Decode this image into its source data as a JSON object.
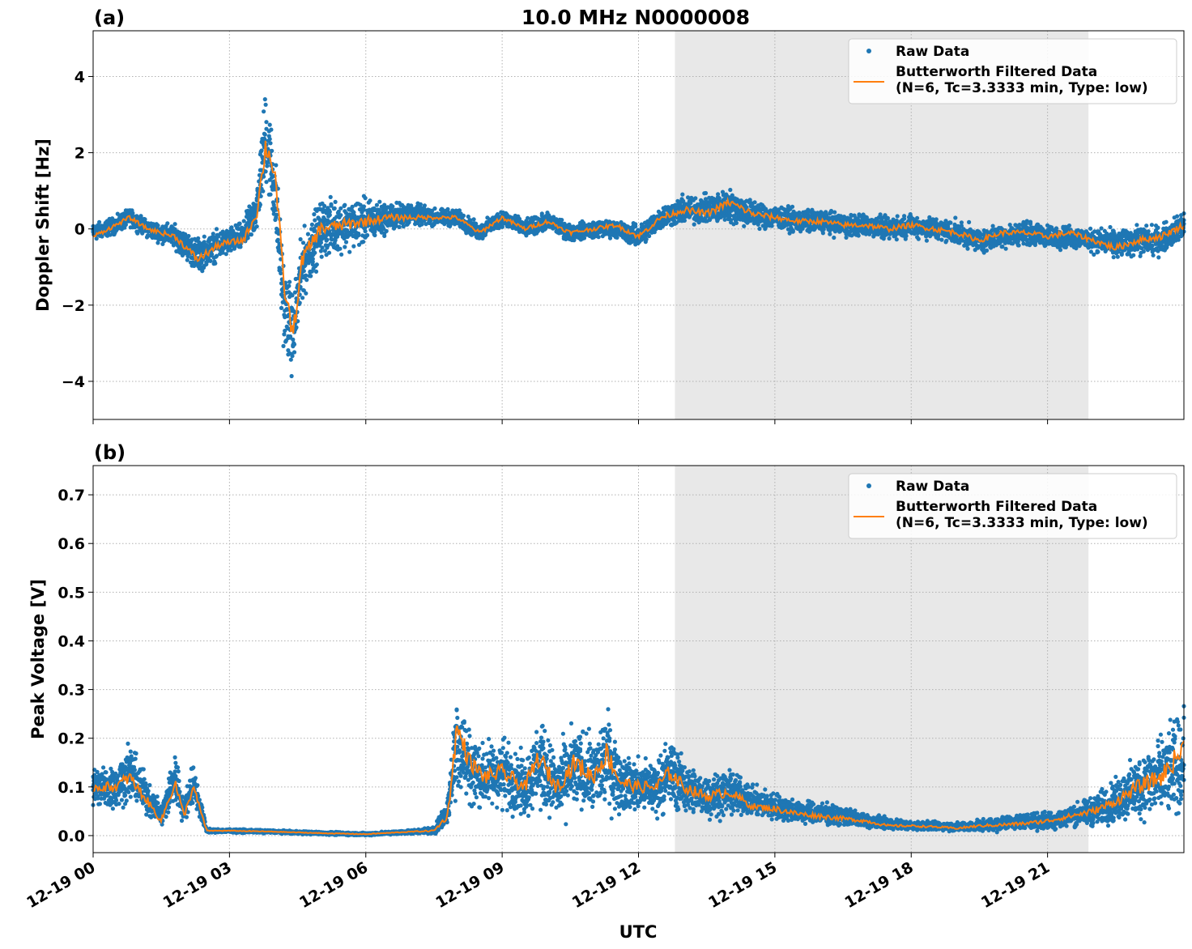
{
  "figure": {
    "title": "10.0 MHz N0000008",
    "xlabel": "UTC",
    "x_tick_labels": [
      "12-19 00",
      "12-19 03",
      "12-19 06",
      "12-19 09",
      "12-19 12",
      "12-19 15",
      "12-19 18",
      "12-19 21"
    ]
  },
  "chart_data": [
    {
      "type": "scatter",
      "panel_label": "(a)",
      "ylabel": "Doppler Shift [Hz]",
      "xlim_hours": [
        0,
        24
      ],
      "ylim": [
        -5,
        5.2
      ],
      "y_ticks": [
        -4,
        -2,
        0,
        2,
        4
      ],
      "y_tick_labels": [
        "−4",
        "−2",
        "0",
        "2",
        "4"
      ],
      "grid": true,
      "legend_position": "top-right",
      "shaded_region_hours": [
        12.8,
        21.9
      ],
      "series": [
        {
          "name": "Raw Data",
          "kind": "scatter",
          "x_hours": [
            0,
            0.5,
            0.8,
            1.2,
            1.8,
            2.3,
            2.8,
            3.3,
            3.6,
            3.8,
            4.0,
            4.2,
            4.4,
            4.6,
            5.0,
            5.5,
            6.0,
            6.5,
            7.0,
            7.5,
            8.0,
            8.5,
            9.0,
            9.5,
            10.0,
            10.5,
            11.0,
            11.5,
            12.0,
            12.5,
            13.0,
            13.5,
            14.0,
            14.5,
            15.0,
            15.5,
            16.0,
            16.5,
            17.0,
            17.5,
            18.0,
            18.5,
            19.0,
            19.5,
            20.0,
            20.5,
            21.0,
            21.5,
            22.0,
            22.5,
            23.0,
            23.5,
            24.0
          ],
          "y_center": [
            -0.1,
            0.1,
            0.3,
            0.0,
            -0.2,
            -0.7,
            -0.4,
            -0.2,
            0.5,
            2.5,
            1.0,
            -2.0,
            -2.8,
            -1.0,
            0.0,
            0.1,
            0.2,
            0.3,
            0.4,
            0.3,
            0.3,
            -0.1,
            0.3,
            0.0,
            0.2,
            -0.1,
            0.0,
            0.0,
            -0.2,
            0.3,
            0.5,
            0.5,
            0.6,
            0.4,
            0.3,
            0.2,
            0.2,
            0.1,
            0.1,
            0.0,
            0.1,
            0.0,
            -0.1,
            -0.3,
            -0.2,
            -0.1,
            -0.2,
            -0.2,
            -0.3,
            -0.4,
            -0.3,
            -0.3,
            0.1
          ],
          "y_spread": [
            0.3,
            0.3,
            0.3,
            0.3,
            0.4,
            0.6,
            0.5,
            0.5,
            0.8,
            1.8,
            1.5,
            1.5,
            1.5,
            1.2,
            1.0,
            0.9,
            0.8,
            0.5,
            0.4,
            0.3,
            0.3,
            0.3,
            0.3,
            0.3,
            0.3,
            0.3,
            0.3,
            0.3,
            0.4,
            0.4,
            0.5,
            0.5,
            0.6,
            0.5,
            0.4,
            0.4,
            0.4,
            0.4,
            0.4,
            0.4,
            0.4,
            0.4,
            0.4,
            0.4,
            0.4,
            0.4,
            0.4,
            0.4,
            0.4,
            0.5,
            0.5,
            0.5,
            0.5
          ]
        },
        {
          "name": "Butterworth Filtered Data\n(N=6, Tc=3.3333 min, Type: low)",
          "kind": "line",
          "x_hours": [
            0,
            0.5,
            0.8,
            1.2,
            1.8,
            2.3,
            2.8,
            3.3,
            3.6,
            3.8,
            4.0,
            4.2,
            4.4,
            4.6,
            5.0,
            5.5,
            6.0,
            6.5,
            7.0,
            7.5,
            8.0,
            8.5,
            9.0,
            9.5,
            10.0,
            10.5,
            11.0,
            11.5,
            12.0,
            12.5,
            13.0,
            13.5,
            14.0,
            14.5,
            15.0,
            15.5,
            16.0,
            16.5,
            17.0,
            17.5,
            18.0,
            18.5,
            19.0,
            19.5,
            20.0,
            20.5,
            21.0,
            21.5,
            22.0,
            22.5,
            23.0,
            23.5,
            24.0
          ],
          "y": [
            -0.2,
            0.1,
            0.3,
            0.0,
            -0.2,
            -0.8,
            -0.4,
            -0.3,
            0.4,
            2.2,
            1.5,
            -1.5,
            -2.8,
            -0.8,
            0.0,
            0.1,
            0.2,
            0.3,
            0.3,
            0.3,
            0.3,
            -0.1,
            0.3,
            0.0,
            0.2,
            -0.1,
            0.0,
            0.1,
            -0.2,
            0.3,
            0.5,
            0.4,
            0.7,
            0.4,
            0.3,
            0.2,
            0.2,
            0.1,
            0.1,
            0.0,
            0.1,
            0.0,
            -0.1,
            -0.3,
            -0.1,
            -0.1,
            -0.2,
            -0.1,
            -0.3,
            -0.5,
            -0.3,
            -0.2,
            0.1
          ]
        }
      ]
    },
    {
      "type": "scatter",
      "panel_label": "(b)",
      "ylabel": "Peak Voltage [V]",
      "xlim_hours": [
        0,
        24
      ],
      "ylim": [
        -0.035,
        0.76
      ],
      "y_ticks": [
        0.0,
        0.1,
        0.2,
        0.3,
        0.4,
        0.5,
        0.6,
        0.7
      ],
      "y_tick_labels": [
        "0.0",
        "0.1",
        "0.2",
        "0.3",
        "0.4",
        "0.5",
        "0.6",
        "0.7"
      ],
      "grid": true,
      "legend_position": "top-right",
      "shaded_region_hours": [
        12.8,
        21.9
      ],
      "series": [
        {
          "name": "Raw Data",
          "kind": "scatter",
          "x_hours": [
            0,
            0.5,
            0.8,
            1.2,
            1.5,
            1.8,
            2.0,
            2.2,
            2.5,
            3.0,
            4.0,
            5.0,
            6.0,
            7.0,
            7.5,
            7.8,
            8.0,
            8.3,
            8.6,
            9.0,
            9.5,
            9.8,
            10.2,
            10.6,
            11.0,
            11.3,
            11.6,
            12.0,
            12.4,
            12.7,
            13.0,
            13.5,
            14.0,
            14.5,
            15.0,
            15.5,
            16.0,
            16.5,
            17.0,
            17.5,
            18.0,
            18.5,
            19.0,
            19.5,
            20.0,
            20.5,
            21.0,
            21.5,
            22.0,
            22.5,
            23.0,
            23.5,
            24.0
          ],
          "y_center": [
            0.1,
            0.1,
            0.13,
            0.08,
            0.04,
            0.12,
            0.05,
            0.11,
            0.01,
            0.01,
            0.008,
            0.005,
            0.003,
            0.008,
            0.01,
            0.05,
            0.2,
            0.14,
            0.12,
            0.13,
            0.1,
            0.15,
            0.1,
            0.14,
            0.12,
            0.16,
            0.11,
            0.1,
            0.1,
            0.13,
            0.1,
            0.08,
            0.09,
            0.07,
            0.06,
            0.05,
            0.045,
            0.04,
            0.03,
            0.025,
            0.02,
            0.02,
            0.018,
            0.02,
            0.025,
            0.03,
            0.03,
            0.04,
            0.05,
            0.07,
            0.1,
            0.12,
            0.15
          ],
          "y_spread": [
            0.06,
            0.06,
            0.08,
            0.05,
            0.03,
            0.08,
            0.03,
            0.06,
            0.005,
            0.005,
            0.004,
            0.004,
            0.004,
            0.005,
            0.01,
            0.04,
            0.16,
            0.1,
            0.09,
            0.1,
            0.08,
            0.12,
            0.09,
            0.12,
            0.1,
            0.14,
            0.08,
            0.07,
            0.08,
            0.1,
            0.07,
            0.06,
            0.06,
            0.04,
            0.04,
            0.03,
            0.03,
            0.025,
            0.02,
            0.015,
            0.012,
            0.012,
            0.012,
            0.015,
            0.02,
            0.02,
            0.025,
            0.03,
            0.04,
            0.06,
            0.09,
            0.11,
            0.14
          ]
        },
        {
          "name": "Butterworth Filtered Data\n(N=6, Tc=3.3333 min, Type: low)",
          "kind": "line",
          "x_hours": [
            0,
            0.5,
            0.8,
            1.2,
            1.5,
            1.8,
            2.0,
            2.2,
            2.5,
            3.0,
            4.0,
            5.0,
            6.0,
            7.0,
            7.5,
            7.8,
            8.0,
            8.3,
            8.6,
            9.0,
            9.5,
            9.8,
            10.2,
            10.6,
            11.0,
            11.3,
            11.6,
            12.0,
            12.4,
            12.7,
            13.0,
            13.5,
            14.0,
            14.5,
            15.0,
            15.5,
            16.0,
            16.5,
            17.0,
            17.5,
            18.0,
            18.5,
            19.0,
            19.5,
            20.0,
            20.5,
            21.0,
            21.5,
            22.0,
            22.5,
            23.0,
            23.5,
            24.0
          ],
          "y": [
            0.1,
            0.1,
            0.12,
            0.07,
            0.03,
            0.11,
            0.04,
            0.1,
            0.01,
            0.01,
            0.008,
            0.005,
            0.003,
            0.008,
            0.01,
            0.04,
            0.22,
            0.15,
            0.12,
            0.13,
            0.1,
            0.16,
            0.1,
            0.15,
            0.12,
            0.17,
            0.11,
            0.1,
            0.1,
            0.13,
            0.1,
            0.08,
            0.09,
            0.06,
            0.055,
            0.045,
            0.04,
            0.035,
            0.03,
            0.02,
            0.02,
            0.018,
            0.015,
            0.02,
            0.022,
            0.025,
            0.03,
            0.04,
            0.05,
            0.07,
            0.1,
            0.12,
            0.18
          ]
        }
      ]
    }
  ],
  "colors": {
    "raw": "#1f77b4",
    "filtered": "#ff7f0e",
    "shade": "#e8e8e8"
  }
}
